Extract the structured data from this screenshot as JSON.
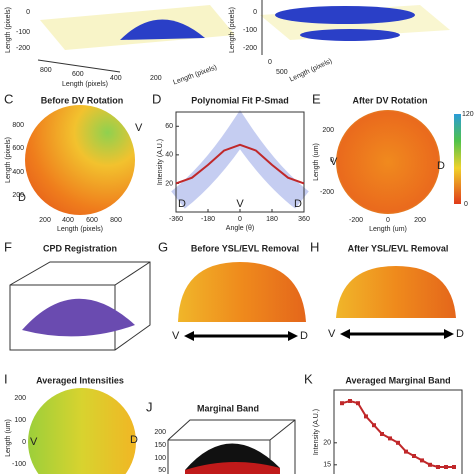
{
  "panels": {
    "A": {
      "y_label": "Length (pixels)",
      "yticks": [
        "0",
        "-100",
        "-200"
      ],
      "xticks": [
        "800",
        "600",
        "400",
        "200"
      ],
      "x_label": "Length (pixels)",
      "z_label": "Length (pixels)"
    },
    "B": {
      "y_label": "Length (pixels)",
      "yticks": [
        "0",
        "-100",
        "-200"
      ],
      "xticks": [
        "0",
        "500"
      ],
      "x_label": "Length (pixels)"
    },
    "C": {
      "letter": "C",
      "title": "Before DV Rotation",
      "y_label": "Length (pixels)",
      "yticks": [
        "800",
        "600",
        "400",
        "200"
      ],
      "xticks": [
        "200",
        "400",
        "600",
        "800"
      ],
      "x_label": "Length (pixels)",
      "marks": [
        "V",
        "D"
      ]
    },
    "E": {
      "letter": "E",
      "title": "After DV Rotation",
      "y_label": "Length (um)",
      "yticks": [
        "200",
        "0",
        "-200"
      ],
      "xticks": [
        "-200",
        "0",
        "200"
      ],
      "x_label": "Length (um)",
      "marks": [
        "V",
        "D"
      ],
      "colorbar": [
        "120",
        "0"
      ]
    },
    "F": {
      "letter": "F",
      "title": "CPD Registration"
    },
    "G": {
      "letter": "G",
      "title": "Before YSL/EVL Removal",
      "marks": [
        "V",
        "D"
      ]
    },
    "H": {
      "letter": "H",
      "title": "After YSL/EVL Removal",
      "marks": [
        "V",
        "D"
      ]
    },
    "I": {
      "letter": "I",
      "title": "Averaged Intensities",
      "y_label": "Length (um)",
      "yticks": [
        "200",
        "100",
        "0",
        "-100"
      ],
      "marks": [
        "V",
        "D"
      ]
    },
    "J": {
      "letter": "J",
      "title": "Marginal Band",
      "yticks": [
        "200",
        "150",
        "100",
        "50"
      ]
    }
  },
  "chart_data": [
    {
      "type": "line",
      "letter": "D",
      "title": "Polynomial Fit P-Smad",
      "x_label": "Angle (θ)",
      "y_label": "Intensity (A.U.)",
      "x": [
        -360,
        -270,
        -180,
        -90,
        0,
        90,
        180,
        270,
        360
      ],
      "series": [
        {
          "color": "#c0282a",
          "values": [
            20,
            24,
            33,
            43,
            47,
            43,
            33,
            24,
            20
          ]
        }
      ],
      "xlim": [
        -360,
        360
      ],
      "ylim": [
        0,
        70
      ],
      "xticks": [
        -360,
        -180,
        0,
        180,
        360
      ],
      "yticks": [
        20,
        40,
        60
      ],
      "annotations": [
        "D",
        "V",
        "D"
      ]
    },
    {
      "type": "line",
      "letter": "K",
      "title": "Averaged Marginal Band",
      "y_label": "Intensity (A.U.)",
      "x": [
        1,
        2,
        3,
        4,
        5,
        6,
        7,
        8,
        9,
        10,
        11,
        12,
        13,
        14,
        15
      ],
      "series": [
        {
          "color": "#c0282a",
          "values": [
            29,
            29.5,
            29,
            26,
            24,
            22,
            21,
            20,
            18,
            17,
            16,
            15,
            14.5,
            14.5,
            14.5
          ]
        }
      ],
      "xlim": [
        0,
        16
      ],
      "ylim": [
        12,
        32
      ],
      "yticks": [
        15,
        20
      ],
      "markers": true
    }
  ]
}
